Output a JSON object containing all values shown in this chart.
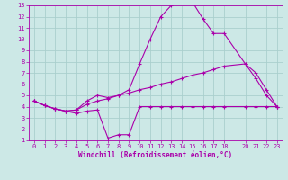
{
  "xlabel": "Windchill (Refroidissement éolien,°C)",
  "xlim": [
    -0.5,
    23.5
  ],
  "ylim": [
    1,
    13
  ],
  "xticks": [
    0,
    1,
    2,
    3,
    4,
    5,
    6,
    7,
    8,
    9,
    10,
    11,
    12,
    13,
    14,
    15,
    16,
    17,
    18,
    20,
    21,
    22,
    23
  ],
  "yticks": [
    1,
    2,
    3,
    4,
    5,
    6,
    7,
    8,
    9,
    10,
    11,
    12,
    13
  ],
  "bg_color": "#cce8e6",
  "grid_color": "#aacfcd",
  "line_color": "#aa00aa",
  "line1_x": [
    0,
    1,
    2,
    3,
    4,
    5,
    6,
    7,
    8,
    9,
    10,
    11,
    12,
    13,
    14,
    15,
    16,
    17,
    18,
    20,
    21,
    22,
    23
  ],
  "line1_y": [
    4.5,
    4.1,
    3.8,
    3.6,
    3.7,
    4.5,
    5.0,
    4.8,
    5.0,
    5.5,
    7.8,
    10.0,
    12.0,
    13.0,
    13.3,
    13.3,
    11.8,
    10.5,
    10.5,
    7.8,
    6.5,
    5.0,
    4.0
  ],
  "line2_x": [
    0,
    1,
    2,
    3,
    4,
    5,
    6,
    7,
    8,
    9,
    10,
    11,
    12,
    13,
    14,
    15,
    16,
    17,
    18,
    20,
    21,
    22,
    23
  ],
  "line2_y": [
    4.5,
    4.1,
    3.8,
    3.6,
    3.4,
    3.6,
    3.7,
    1.2,
    1.5,
    1.5,
    4.0,
    4.0,
    4.0,
    4.0,
    4.0,
    4.0,
    4.0,
    4.0,
    4.0,
    4.0,
    4.0,
    4.0,
    4.0
  ],
  "line3_x": [
    0,
    1,
    2,
    3,
    4,
    5,
    6,
    7,
    8,
    9,
    10,
    11,
    12,
    13,
    14,
    15,
    16,
    17,
    18,
    20,
    21,
    22,
    23
  ],
  "line3_y": [
    4.5,
    4.1,
    3.8,
    3.6,
    3.7,
    4.2,
    4.5,
    4.7,
    5.0,
    5.2,
    5.5,
    5.7,
    6.0,
    6.2,
    6.5,
    6.8,
    7.0,
    7.3,
    7.6,
    7.8,
    7.0,
    5.5,
    4.0
  ],
  "tick_fontsize": 5.0,
  "label_fontsize": 5.5,
  "lw": 0.8,
  "marker_size": 2.5
}
